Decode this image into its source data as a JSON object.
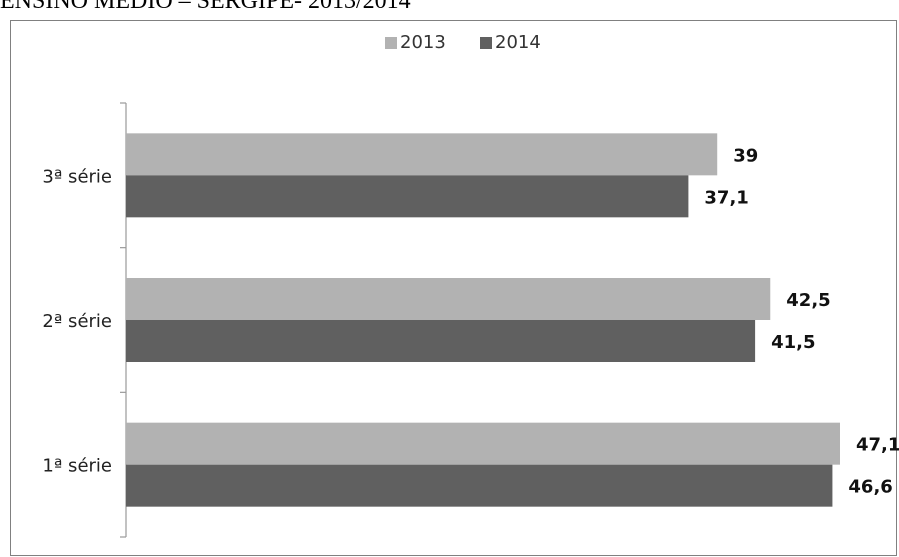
{
  "title": "ENSINO MÉDIO – SERGIPE- 2013/2014",
  "chart_data": {
    "type": "bar",
    "orientation": "horizontal",
    "categories": [
      "3ª série",
      "2ª série",
      "1ª série"
    ],
    "series": [
      {
        "name": "2013",
        "values": [
          39,
          42.5,
          47.1
        ],
        "labels": [
          "39",
          "42,5",
          "47,1"
        ],
        "color": "#b2b2b2"
      },
      {
        "name": "2014",
        "values": [
          37.1,
          41.5,
          46.6
        ],
        "labels": [
          "37,1",
          "41,5",
          "46,6"
        ],
        "color": "#606060"
      }
    ],
    "xlim": [
      0,
      47.1
    ],
    "legend_position": "top-center",
    "grid": false
  }
}
